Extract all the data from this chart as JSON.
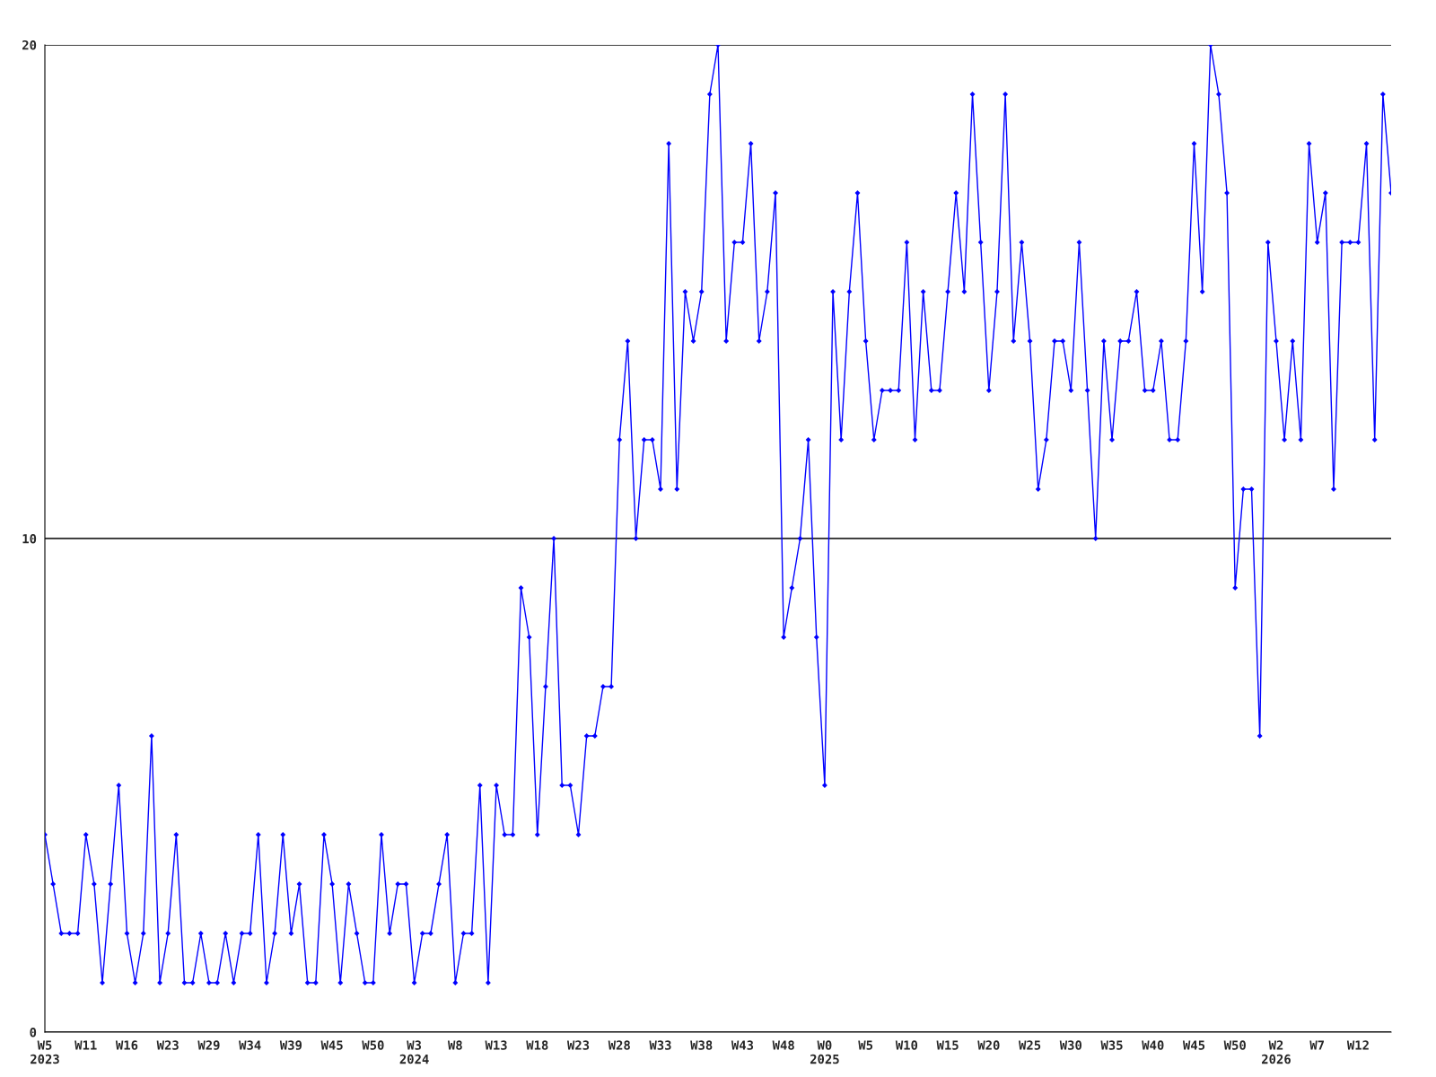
{
  "chart_data": {
    "type": "line",
    "categories": [
      "W5\n2023",
      null,
      null,
      null,
      null,
      "W11",
      null,
      null,
      null,
      null,
      "W16",
      null,
      null,
      null,
      null,
      "W23",
      null,
      null,
      null,
      null,
      "W29",
      null,
      null,
      null,
      null,
      "W34",
      null,
      null,
      null,
      null,
      "W39",
      null,
      null,
      null,
      null,
      "W45",
      null,
      null,
      null,
      null,
      "W50",
      null,
      null,
      null,
      null,
      "W3\n2024",
      null,
      null,
      null,
      null,
      "W8",
      null,
      null,
      null,
      null,
      "W13",
      null,
      null,
      null,
      null,
      "W18",
      null,
      null,
      null,
      null,
      "W23",
      null,
      null,
      null,
      null,
      "W28",
      null,
      null,
      null,
      null,
      "W33",
      null,
      null,
      null,
      null,
      "W38",
      null,
      null,
      null,
      null,
      "W43",
      null,
      null,
      null,
      null,
      "W48",
      null,
      null,
      null,
      null,
      "W0\n2025",
      null,
      null,
      null,
      null,
      "W5",
      null,
      null,
      null,
      null,
      "W10",
      null,
      null,
      null,
      null,
      "W15",
      null,
      null,
      null,
      null,
      "W20",
      null,
      null,
      null,
      null,
      "W25",
      null,
      null,
      null,
      null,
      "W30",
      null,
      null,
      null,
      null,
      "W35",
      null,
      null,
      null,
      null,
      "W40",
      null,
      null,
      null,
      null,
      "W45",
      null,
      null,
      null,
      null,
      "W50",
      null,
      null,
      null,
      null,
      "W2\n2026",
      null,
      null,
      null,
      null,
      "W7",
      null,
      null,
      null,
      null,
      "W12",
      null,
      null,
      null,
      null
    ],
    "series": [
      {
        "color": "#0000ff",
        "values": [
          4,
          3,
          2,
          2,
          2,
          4,
          3,
          1,
          3,
          5,
          2,
          1,
          2,
          6,
          1,
          2,
          4,
          1,
          1,
          2,
          1,
          1,
          2,
          1,
          2,
          2,
          4,
          1,
          2,
          4,
          2,
          3,
          1,
          1,
          4,
          3,
          1,
          3,
          2,
          1,
          1,
          4,
          2,
          3,
          3,
          1,
          2,
          2,
          3,
          4,
          1,
          2,
          2,
          5,
          1,
          5,
          4,
          4,
          9,
          8,
          4,
          7,
          10,
          5,
          5,
          4,
          6,
          6,
          7,
          7,
          12,
          14,
          10,
          12,
          12,
          11,
          18,
          11,
          15,
          14,
          15,
          19,
          20,
          14,
          16,
          16,
          18,
          14,
          15,
          17,
          8,
          9,
          10,
          12,
          8,
          5,
          15,
          12,
          15,
          17,
          14,
          12,
          13,
          13,
          13,
          16,
          12,
          15,
          13,
          13,
          15,
          17,
          15,
          19,
          16,
          13,
          15,
          19,
          14,
          16,
          14,
          11,
          12,
          14,
          14,
          13,
          16,
          13,
          10,
          14,
          12,
          14,
          14,
          15,
          13,
          13,
          14,
          12,
          12,
          14,
          18,
          15,
          20,
          19,
          17,
          9,
          11,
          11,
          6,
          16,
          14,
          12,
          14,
          12,
          18,
          16,
          17,
          11,
          16,
          16,
          16,
          18,
          12,
          19,
          17
        ]
      }
    ],
    "ylim": [
      0,
      20
    ],
    "yticks": [
      0,
      10,
      20
    ],
    "grid": "y",
    "marker": "diamond",
    "line_style": "solid",
    "legend": false
  }
}
